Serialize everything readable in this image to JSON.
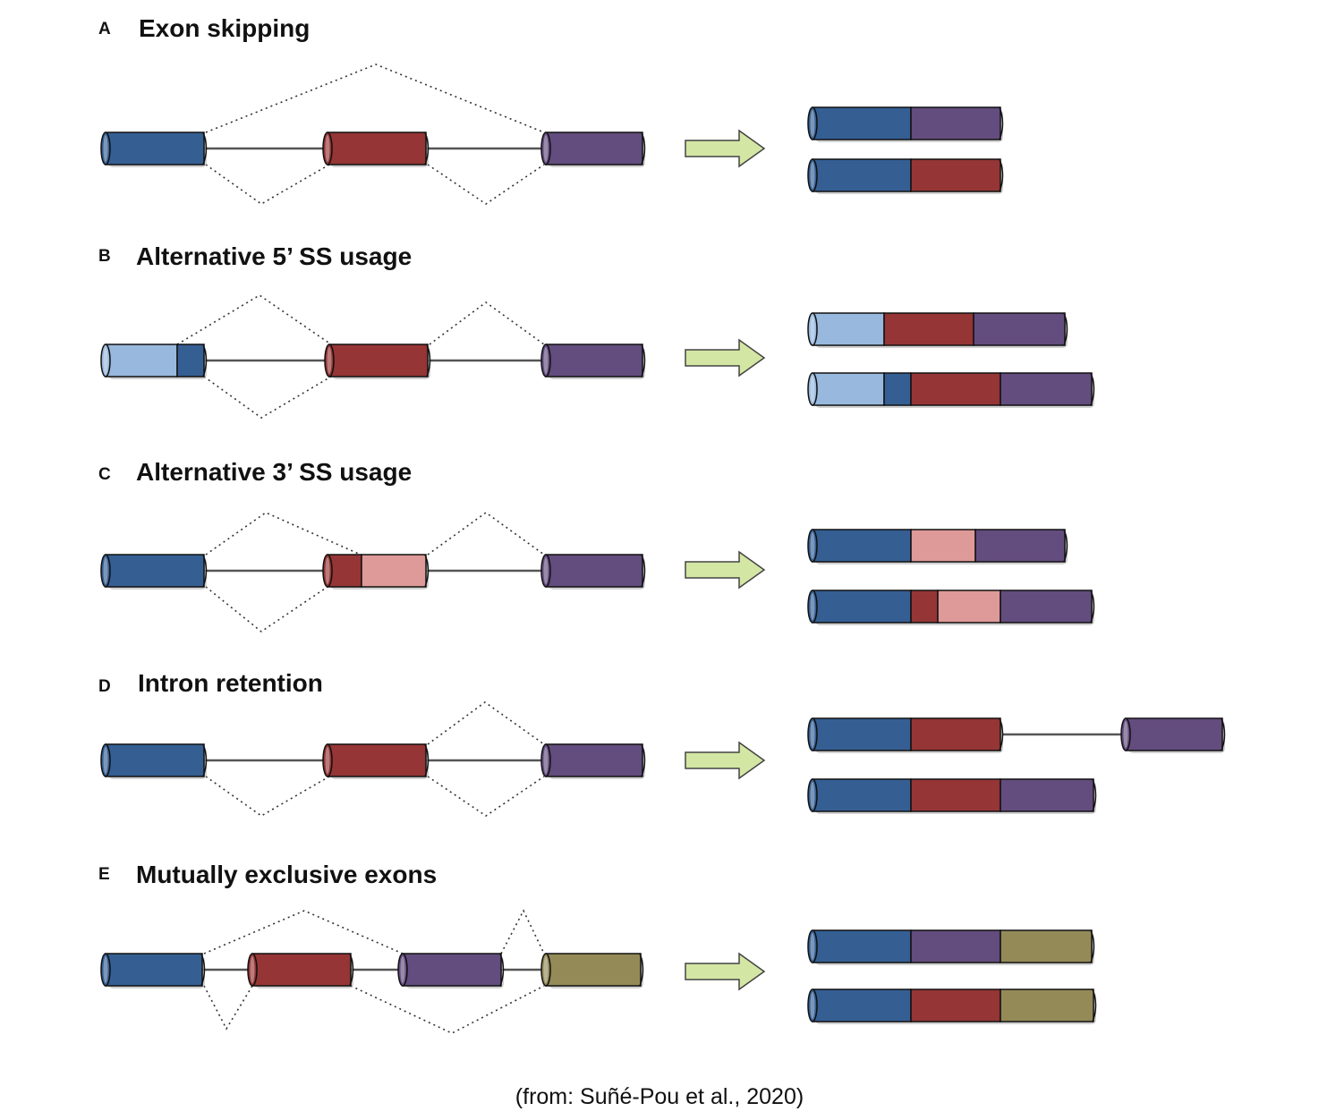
{
  "colors": {
    "blue": "#355f93",
    "light_blue": "#98b8dd",
    "red": "#953535",
    "pink": "#de9a98",
    "purple": "#634c7e",
    "olive": "#938a58",
    "arrow": "#d4e6a4"
  },
  "panels": [
    {
      "letter": "A",
      "title": "Exon skipping"
    },
    {
      "letter": "B",
      "title": "Alternative 5’ SS usage"
    },
    {
      "letter": "C",
      "title": "Alternative 3’ SS usage"
    },
    {
      "letter": "D",
      "title": "Intron retention"
    },
    {
      "letter": "E",
      "title": "Mutually exclusive exons"
    }
  ],
  "caption": "(from: Suñé-Pou et al., 2020)"
}
